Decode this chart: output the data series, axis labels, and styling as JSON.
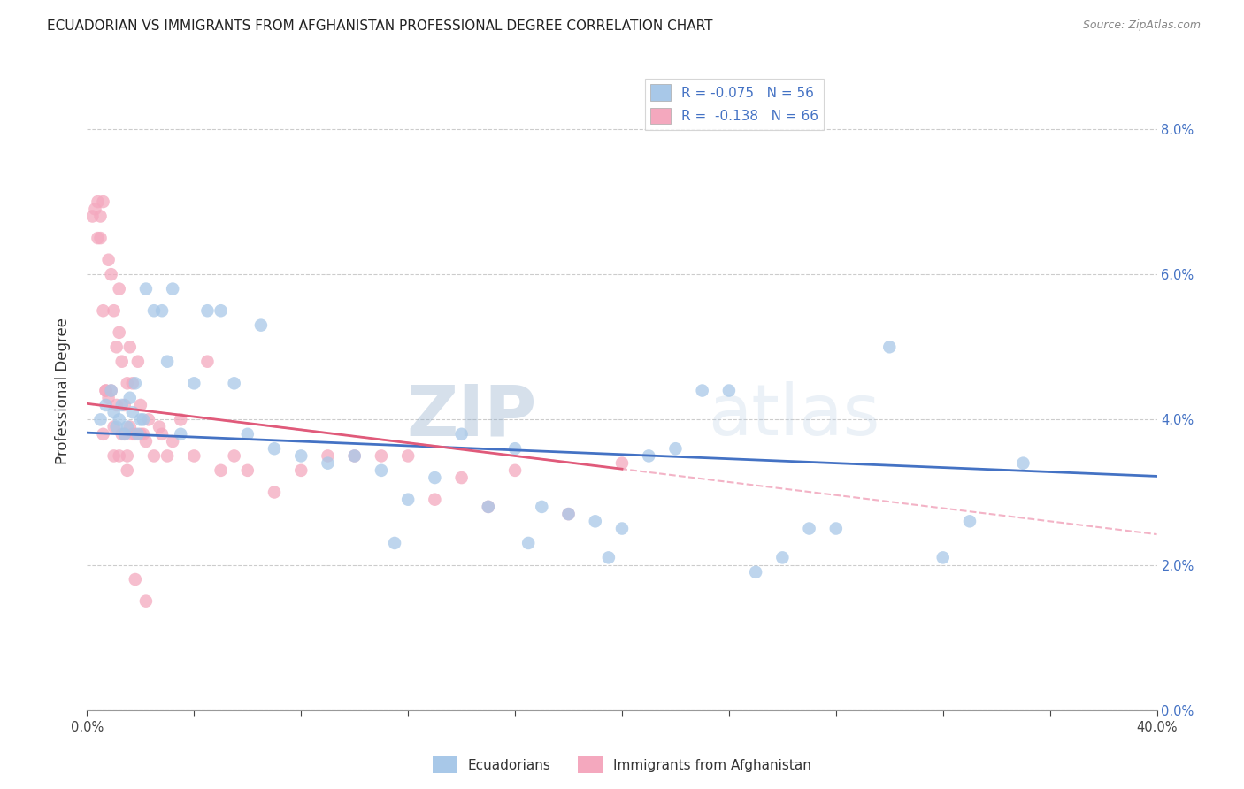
{
  "title": "ECUADORIAN VS IMMIGRANTS FROM AFGHANISTAN PROFESSIONAL DEGREE CORRELATION CHART",
  "source": "Source: ZipAtlas.com",
  "ylabel": "Professional Degree",
  "right_ytick_vals": [
    0.0,
    2.0,
    4.0,
    6.0,
    8.0
  ],
  "xmin": 0.0,
  "xmax": 40.0,
  "ymin": 0.0,
  "ymax": 8.8,
  "yplot_max": 8.0,
  "blue_R": "-0.075",
  "blue_N": "56",
  "pink_R": "-0.138",
  "pink_N": "66",
  "legend_label_blue": "Ecuadorians",
  "legend_label_pink": "Immigrants from Afghanistan",
  "blue_color": "#a8c8e8",
  "pink_color": "#f4a8be",
  "blue_line_color": "#4472c4",
  "pink_line_color": "#e05a7a",
  "pink_dash_color": "#f0a0b8",
  "watermark_zip": "ZIP",
  "watermark_atlas": "atlas",
  "blue_scatter_x": [
    0.5,
    0.7,
    0.9,
    1.0,
    1.1,
    1.2,
    1.3,
    1.4,
    1.5,
    1.6,
    1.7,
    1.8,
    1.9,
    2.0,
    2.1,
    2.2,
    2.5,
    2.8,
    3.0,
    3.2,
    3.5,
    4.0,
    4.5,
    5.0,
    5.5,
    6.0,
    6.5,
    7.0,
    8.0,
    9.0,
    10.0,
    11.0,
    12.0,
    13.0,
    14.0,
    15.0,
    16.0,
    17.0,
    18.0,
    19.0,
    20.0,
    21.0,
    22.0,
    23.0,
    24.0,
    25.0,
    26.0,
    27.0,
    28.0,
    30.0,
    32.0,
    33.0,
    35.0,
    11.5,
    16.5,
    19.5
  ],
  "blue_scatter_y": [
    4.0,
    4.2,
    4.4,
    4.1,
    3.9,
    4.0,
    4.2,
    3.8,
    3.9,
    4.3,
    4.1,
    4.5,
    3.8,
    4.0,
    4.0,
    5.8,
    5.5,
    5.5,
    4.8,
    5.8,
    3.8,
    4.5,
    5.5,
    5.5,
    4.5,
    3.8,
    5.3,
    3.6,
    3.5,
    3.4,
    3.5,
    3.3,
    2.9,
    3.2,
    3.8,
    2.8,
    3.6,
    2.8,
    2.7,
    2.6,
    2.5,
    3.5,
    3.6,
    4.4,
    4.4,
    1.9,
    2.1,
    2.5,
    2.5,
    5.0,
    2.1,
    2.6,
    3.4,
    2.3,
    2.3,
    2.1
  ],
  "pink_scatter_x": [
    0.2,
    0.3,
    0.4,
    0.4,
    0.5,
    0.5,
    0.6,
    0.6,
    0.7,
    0.7,
    0.8,
    0.8,
    0.9,
    0.9,
    1.0,
    1.0,
    1.0,
    1.1,
    1.1,
    1.2,
    1.2,
    1.3,
    1.3,
    1.4,
    1.4,
    1.5,
    1.5,
    1.6,
    1.6,
    1.7,
    1.7,
    1.8,
    1.9,
    2.0,
    2.0,
    2.1,
    2.2,
    2.3,
    2.5,
    2.7,
    3.0,
    3.2,
    3.5,
    4.0,
    4.5,
    5.0,
    5.5,
    6.0,
    7.0,
    8.0,
    9.0,
    10.0,
    11.0,
    12.0,
    13.0,
    14.0,
    15.0,
    16.0,
    18.0,
    20.0,
    1.5,
    2.8,
    1.2,
    0.6,
    1.8,
    2.2
  ],
  "pink_scatter_y": [
    6.8,
    6.9,
    7.0,
    6.5,
    6.8,
    6.5,
    7.0,
    5.5,
    4.4,
    4.4,
    6.2,
    4.3,
    4.4,
    6.0,
    5.5,
    3.9,
    3.5,
    5.0,
    4.2,
    5.2,
    5.8,
    3.8,
    4.8,
    3.8,
    4.2,
    3.5,
    4.5,
    5.0,
    3.9,
    4.5,
    3.8,
    3.8,
    4.8,
    3.8,
    4.2,
    3.8,
    3.7,
    4.0,
    3.5,
    3.9,
    3.5,
    3.7,
    4.0,
    3.5,
    4.8,
    3.3,
    3.5,
    3.3,
    3.0,
    3.3,
    3.5,
    3.5,
    3.5,
    3.5,
    2.9,
    3.2,
    2.8,
    3.3,
    2.7,
    3.4,
    3.3,
    3.8,
    3.5,
    3.8,
    1.8,
    1.5
  ]
}
